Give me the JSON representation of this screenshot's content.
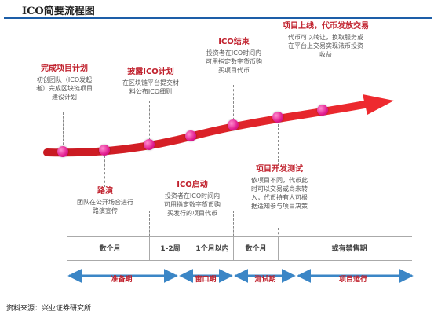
{
  "title": "ICO简要流程图",
  "stages": {
    "plan": {
      "heading": "完成项目计划",
      "lines": [
        "初创团队（ICO发起",
        "者）完成区块链项目",
        "建设计划"
      ]
    },
    "disclose": {
      "heading": "披露ICO计划",
      "lines": [
        "在区块链平台提交材",
        "料公布ICO细则"
      ]
    },
    "end": {
      "heading": "ICO结束",
      "lines": [
        "投资者在ICO时间内",
        "可用指定数字货币购",
        "买项目代币"
      ]
    },
    "listing": {
      "heading": "项目上线，代币发放交易",
      "lines": [
        "代币可以转让，换取服务或",
        "在平台上交易实现法币投资",
        "收益"
      ]
    },
    "roadshow": {
      "heading": "路演",
      "lines": [
        "团队在公开场合进行",
        "路演宣传"
      ]
    },
    "launch": {
      "heading": "ICO启动",
      "lines": [
        "投资者在ICO时间内",
        "可用指定数字货币购",
        "买发行的项目代币"
      ]
    },
    "dev_test": {
      "heading": "项目开发测试",
      "lines": [
        "依项目不同，代币此",
        "时可以交易或尚未转",
        "入，代币持有人可根",
        "据适知参与项目决策"
      ]
    }
  },
  "periods": [
    "数个月",
    "1-2周",
    "1个月以内",
    "数个月",
    "或有禁售期"
  ],
  "phases": [
    "准备期",
    "窗口期",
    "测试期",
    "项目运行"
  ],
  "source": "资料来源：兴业证券研究所",
  "colors": {
    "accent": "#c0202c",
    "timeline": "#d9232d",
    "rule": "#1d5ea8",
    "phase_arrow": "#3b86c6"
  }
}
